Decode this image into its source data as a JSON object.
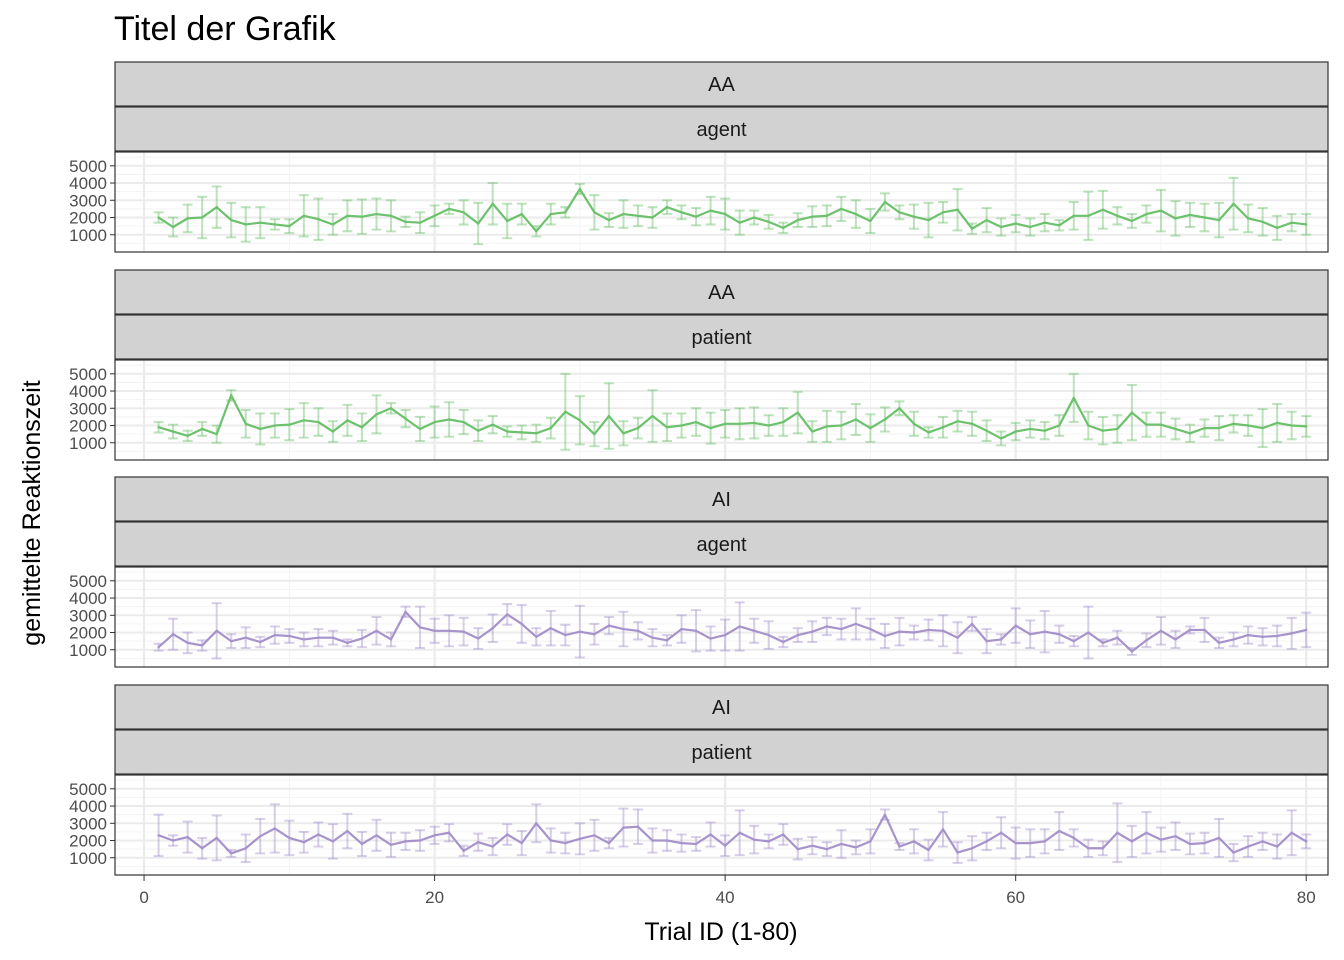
{
  "chart_data": {
    "type": "line",
    "title": "Titel der Grafik",
    "xlabel": "Trial ID (1-80)",
    "ylabel": "gemittelte Reaktionszeit",
    "xlim": [
      -2,
      81.5
    ],
    "ylim": [
      0,
      5800
    ],
    "x_ticks": [
      0,
      20,
      40,
      60,
      80
    ],
    "x_tick_labels": [
      "0",
      "20",
      "40",
      "60",
      "80"
    ],
    "y_ticks": [
      1000,
      2000,
      3000,
      4000,
      5000
    ],
    "y_tick_labels": [
      "1000",
      "2000",
      "3000",
      "4000",
      "5000"
    ],
    "grid": true,
    "error_bars": true,
    "colors": {
      "AA": "#6cc16c",
      "AI": "#a693cc",
      "strip_fill": "#d2d2d2",
      "grid": "#ebebeb"
    },
    "panels": [
      {
        "strip_top": "AA",
        "strip_bottom": "agent",
        "color_key": "AA",
        "x": [
          1,
          2,
          3,
          4,
          5,
          6,
          7,
          8,
          9,
          10,
          11,
          12,
          13,
          14,
          15,
          16,
          17,
          18,
          19,
          20,
          21,
          22,
          23,
          24,
          25,
          26,
          27,
          28,
          29,
          30,
          31,
          32,
          33,
          34,
          35,
          36,
          37,
          38,
          39,
          40,
          41,
          42,
          43,
          44,
          45,
          46,
          47,
          48,
          49,
          50,
          51,
          52,
          53,
          54,
          55,
          56,
          57,
          58,
          59,
          60,
          61,
          62,
          63,
          64,
          65,
          66,
          67,
          68,
          69,
          70,
          71,
          72,
          73,
          74,
          75,
          76,
          77,
          78,
          79,
          80
        ],
        "y": [
          2000,
          1450,
          1950,
          2000,
          2600,
          1850,
          1600,
          1700,
          1600,
          1500,
          2100,
          1900,
          1600,
          2100,
          2050,
          2200,
          2100,
          1750,
          1700,
          2100,
          2500,
          2300,
          1650,
          2800,
          1800,
          2200,
          1200,
          2200,
          2300,
          3650,
          2300,
          1850,
          2200,
          2100,
          2000,
          2600,
          2300,
          2050,
          2400,
          2200,
          1700,
          2000,
          1750,
          1400,
          1850,
          2050,
          2100,
          2500,
          2200,
          1800,
          2900,
          2300,
          2050,
          1850,
          2300,
          2450,
          1350,
          1850,
          1450,
          1650,
          1450,
          1700,
          1550,
          2100,
          2100,
          2450,
          2100,
          1800,
          2200,
          2400,
          1950,
          2150,
          2000,
          1850,
          2800,
          1950,
          1750,
          1400,
          1700,
          1600
        ],
        "err": [
          300,
          550,
          800,
          1200,
          1200,
          1000,
          1000,
          900,
          300,
          400,
          1200,
          1200,
          600,
          900,
          1000,
          900,
          900,
          300,
          600,
          600,
          300,
          700,
          1200,
          1200,
          1000,
          600,
          300,
          600,
          300,
          300,
          1000,
          400,
          800,
          600,
          600,
          400,
          400,
          500,
          800,
          900,
          700,
          400,
          400,
          300,
          400,
          600,
          600,
          700,
          800,
          700,
          500,
          400,
          700,
          1000,
          600,
          1200,
          300,
          700,
          500,
          500,
          500,
          500,
          300,
          800,
          1400,
          1100,
          500,
          400,
          500,
          1200,
          1000,
          700,
          800,
          1000,
          1500,
          800,
          800,
          700,
          500,
          600
        ]
      },
      {
        "strip_top": "AA",
        "strip_bottom": "patient",
        "color_key": "AA",
        "x": [
          1,
          2,
          3,
          4,
          5,
          6,
          7,
          8,
          9,
          10,
          11,
          12,
          13,
          14,
          15,
          16,
          17,
          18,
          19,
          20,
          21,
          22,
          23,
          24,
          25,
          26,
          27,
          28,
          29,
          30,
          31,
          32,
          33,
          34,
          35,
          36,
          37,
          38,
          39,
          40,
          41,
          42,
          43,
          44,
          45,
          46,
          47,
          48,
          49,
          50,
          51,
          52,
          53,
          54,
          55,
          56,
          57,
          58,
          59,
          60,
          61,
          62,
          63,
          64,
          65,
          66,
          67,
          68,
          69,
          70,
          71,
          72,
          73,
          74,
          75,
          76,
          77,
          78,
          79,
          80
        ],
        "y": [
          1900,
          1650,
          1400,
          1800,
          1500,
          3750,
          2100,
          1800,
          2000,
          2050,
          2300,
          2200,
          1650,
          2300,
          1900,
          2650,
          3000,
          2400,
          1800,
          2200,
          2350,
          2200,
          1700,
          2050,
          1650,
          1600,
          1550,
          1850,
          2800,
          2300,
          1500,
          2550,
          1550,
          1850,
          2550,
          1900,
          2000,
          2200,
          1850,
          2100,
          2100,
          2150,
          2000,
          2200,
          2750,
          1650,
          1950,
          2000,
          2350,
          1850,
          2350,
          3000,
          2100,
          1600,
          1900,
          2250,
          2100,
          1700,
          1250,
          1650,
          1800,
          1700,
          2000,
          3600,
          2000,
          1700,
          1800,
          2750,
          2050,
          2050,
          1800,
          1550,
          1850,
          1850,
          2100,
          2000,
          1850,
          2150,
          2000,
          1950
        ],
        "err": [
          300,
          400,
          300,
          400,
          500,
          300,
          800,
          900,
          700,
          900,
          1000,
          800,
          600,
          900,
          800,
          1100,
          300,
          500,
          700,
          900,
          1000,
          700,
          600,
          500,
          300,
          400,
          500,
          600,
          2200,
          1400,
          700,
          1900,
          700,
          600,
          1500,
          800,
          700,
          800,
          900,
          800,
          900,
          900,
          600,
          800,
          1200,
          600,
          900,
          800,
          900,
          800,
          700,
          400,
          700,
          300,
          600,
          600,
          700,
          600,
          400,
          500,
          500,
          500,
          600,
          1400,
          800,
          800,
          800,
          1600,
          700,
          700,
          600,
          500,
          500,
          700,
          500,
          600,
          1100,
          1100,
          800,
          600
        ]
      },
      {
        "strip_top": "AI",
        "strip_bottom": "agent",
        "color_key": "AI",
        "x": [
          1,
          2,
          3,
          4,
          5,
          6,
          7,
          8,
          9,
          10,
          11,
          12,
          13,
          14,
          15,
          16,
          17,
          18,
          19,
          20,
          21,
          22,
          23,
          24,
          25,
          26,
          27,
          28,
          29,
          30,
          31,
          32,
          33,
          34,
          35,
          36,
          37,
          38,
          39,
          40,
          41,
          42,
          43,
          44,
          45,
          46,
          47,
          48,
          49,
          50,
          51,
          52,
          53,
          54,
          55,
          56,
          57,
          58,
          59,
          60,
          61,
          62,
          63,
          64,
          65,
          66,
          67,
          68,
          69,
          70,
          71,
          72,
          73,
          74,
          75,
          76,
          77,
          78,
          79,
          80
        ],
        "y": [
          1150,
          1900,
          1400,
          1250,
          2100,
          1500,
          1700,
          1450,
          1850,
          1800,
          1600,
          1700,
          1700,
          1400,
          1650,
          2100,
          1600,
          3200,
          2300,
          2100,
          2100,
          2050,
          1650,
          2250,
          3050,
          2500,
          1750,
          2250,
          1850,
          2050,
          1900,
          2400,
          2200,
          2100,
          1700,
          1550,
          2200,
          2100,
          1650,
          1850,
          2350,
          2100,
          1850,
          1450,
          1850,
          2050,
          2350,
          2200,
          2500,
          2200,
          1800,
          2050,
          2000,
          2150,
          2100,
          1700,
          2500,
          1500,
          1600,
          2400,
          1900,
          2050,
          1900,
          1500,
          2000,
          1400,
          1700,
          900,
          1550,
          2100,
          1600,
          2150,
          2150,
          1400,
          1600,
          1850,
          1750,
          1800,
          1950,
          2150
        ],
        "err": [
          200,
          900,
          600,
          300,
          1600,
          400,
          600,
          300,
          500,
          400,
          400,
          500,
          400,
          200,
          500,
          800,
          400,
          300,
          1200,
          700,
          900,
          800,
          600,
          800,
          600,
          1100,
          500,
          1000,
          600,
          1500,
          600,
          500,
          1000,
          500,
          500,
          300,
          800,
          1200,
          700,
          900,
          1400,
          700,
          800,
          300,
          400,
          600,
          500,
          600,
          900,
          600,
          700,
          800,
          400,
          600,
          900,
          900,
          400,
          700,
          300,
          1000,
          800,
          1200,
          500,
          300,
          1500,
          200,
          400,
          200,
          400,
          800,
          500,
          200,
          700,
          300,
          400,
          500,
          500,
          600,
          900,
          1000
        ]
      },
      {
        "strip_top": "AI",
        "strip_bottom": "patient",
        "color_key": "AI",
        "x": [
          1,
          2,
          3,
          4,
          5,
          6,
          7,
          8,
          9,
          10,
          11,
          12,
          13,
          14,
          15,
          16,
          17,
          18,
          19,
          20,
          21,
          22,
          23,
          24,
          25,
          26,
          27,
          28,
          29,
          30,
          31,
          32,
          33,
          34,
          35,
          36,
          37,
          38,
          39,
          40,
          41,
          42,
          43,
          44,
          45,
          46,
          47,
          48,
          49,
          50,
          51,
          52,
          53,
          54,
          55,
          56,
          57,
          58,
          59,
          60,
          61,
          62,
          63,
          64,
          65,
          66,
          67,
          68,
          69,
          70,
          71,
          72,
          73,
          74,
          75,
          76,
          77,
          78,
          79,
          80
        ],
        "y": [
          2300,
          2000,
          2200,
          1550,
          2150,
          1250,
          1550,
          2250,
          2700,
          2150,
          1900,
          2350,
          1950,
          2550,
          1800,
          2300,
          1750,
          1950,
          2000,
          2300,
          2450,
          1400,
          1900,
          1650,
          2350,
          1850,
          3000,
          2000,
          1850,
          2100,
          2300,
          1850,
          2750,
          2800,
          2000,
          2000,
          1850,
          1800,
          2350,
          1700,
          2450,
          2050,
          1950,
          2350,
          1500,
          1700,
          1500,
          1800,
          1600,
          1950,
          3500,
          1650,
          1950,
          1450,
          2650,
          1300,
          1550,
          1950,
          2450,
          1850,
          1850,
          1950,
          2550,
          2150,
          1550,
          1550,
          2450,
          1950,
          2450,
          2050,
          2250,
          1800,
          1850,
          2150,
          1300,
          1650,
          1950,
          1650,
          2450,
          1950
        ],
        "err": [
          1200,
          300,
          900,
          600,
          1300,
          200,
          800,
          1000,
          1400,
          1000,
          600,
          700,
          1000,
          1000,
          700,
          900,
          700,
          500,
          600,
          500,
          500,
          300,
          500,
          500,
          600,
          700,
          1100,
          700,
          600,
          900,
          900,
          300,
          1100,
          1000,
          700,
          600,
          500,
          400,
          700,
          600,
          1300,
          800,
          400,
          600,
          600,
          500,
          400,
          800,
          400,
          700,
          300,
          200,
          700,
          600,
          1000,
          600,
          700,
          500,
          900,
          900,
          800,
          700,
          1100,
          500,
          500,
          400,
          1700,
          900,
          1200,
          700,
          800,
          600,
          600,
          1100,
          500,
          600,
          500,
          700,
          1300,
          400
        ]
      }
    ]
  }
}
